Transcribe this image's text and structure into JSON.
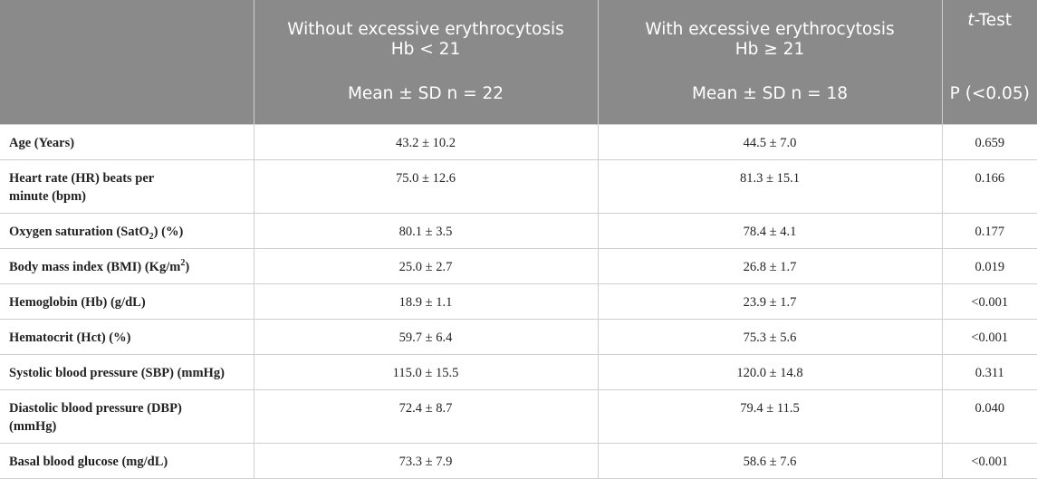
{
  "header": {
    "col1": {
      "line1": "Without excessive erythrocytosis",
      "line2": "Hb < 21",
      "stat": "Mean ± SD n = 22"
    },
    "col2": {
      "line1": "With excessive erythrocytosis",
      "line2": "Hb ≥ 21",
      "stat": "Mean ± SD n = 18"
    },
    "col3": {
      "t": "t",
      "rest": "-Test",
      "stat": "P (<0.05)"
    }
  },
  "rows": [
    {
      "label": "Age (Years)",
      "g1": "43.2 ± 10.2",
      "g2": "44.5 ± 7.0",
      "p": "0.659"
    },
    {
      "label_line1": "Heart rate (HR) beats per",
      "label_line2": "minute (bpm)",
      "g1": "75.0 ± 12.6",
      "g2": "81.3 ± 15.1",
      "p": "0.166"
    },
    {
      "label_pre": "Oxygen saturation (SatO",
      "label_sub": "2",
      "label_post": ") (%)",
      "g1": "80.1 ± 3.5",
      "g2": "78.4 ± 4.1",
      "p": "0.177"
    },
    {
      "label_pre": "Body mass index (BMI) (Kg/m",
      "label_sup": "2",
      "label_post": ")",
      "g1": "25.0 ± 2.7",
      "g2": "26.8 ± 1.7",
      "p": "0.019"
    },
    {
      "label": "Hemoglobin (Hb) (g/dL)",
      "g1": "18.9 ± 1.1",
      "g2": "23.9 ± 1.7",
      "p": "<0.001"
    },
    {
      "label": "Hematocrit (Hct) (%)",
      "g1": "59.7 ± 6.4",
      "g2": "75.3 ± 5.6",
      "p": "<0.001"
    },
    {
      "label": "Systolic blood pressure (SBP) (mmHg)",
      "g1": "115.0 ± 15.5",
      "g2": "120.0 ± 14.8",
      "p": "0.311"
    },
    {
      "label_line1": "Diastolic blood pressure (DBP)",
      "label_line2": "(mmHg)",
      "g1": "72.4 ± 8.7",
      "g2": "79.4 ± 11.5",
      "p": "0.040"
    },
    {
      "label": "Basal blood glucose (mg/dL)",
      "g1": "73.3 ± 7.9",
      "g2": "58.6 ± 7.6",
      "p": "<0.001"
    }
  ]
}
